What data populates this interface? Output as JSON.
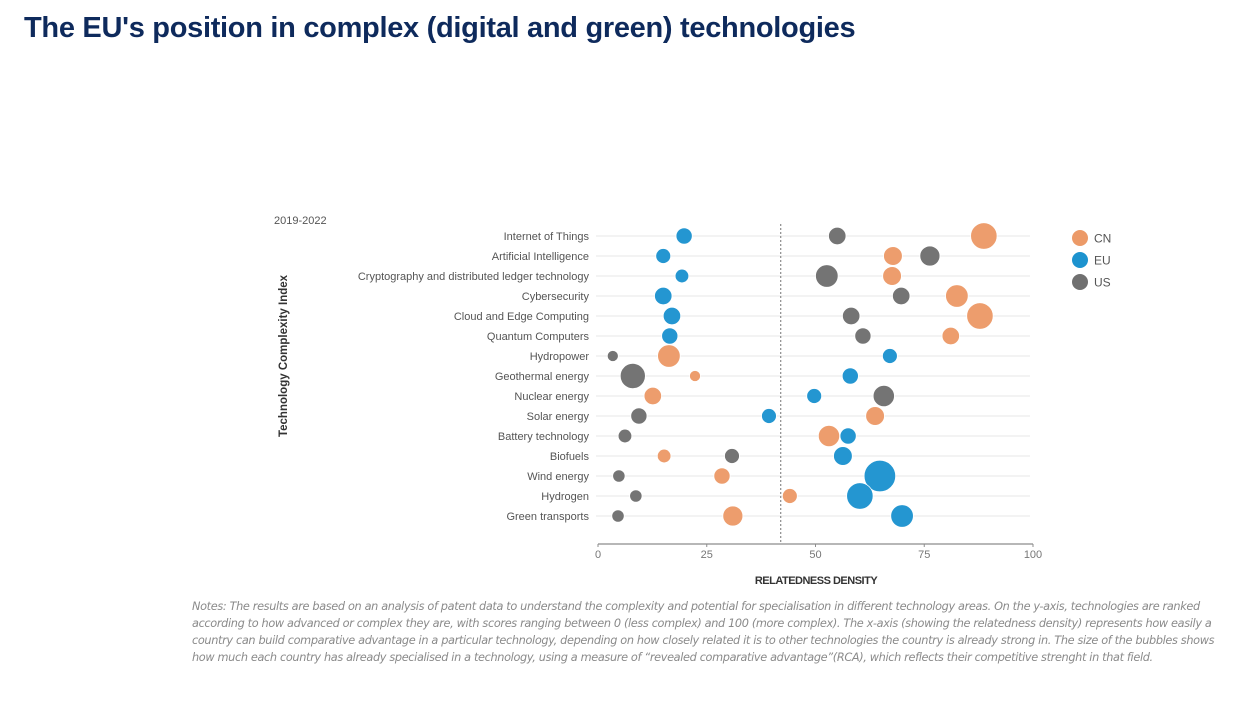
{
  "page": {
    "title": "The EU's position in complex (digital and green) technologies"
  },
  "chart_data": {
    "type": "scatter",
    "subtype": "bubble",
    "period_label": "2019-2022",
    "xlabel": "RELATEDNESS DENSITY",
    "ylabel": "Technology Complexity Index",
    "xlim": [
      0,
      100
    ],
    "xticks": [
      0,
      25,
      50,
      75,
      100
    ],
    "xtick_labels": [
      "0",
      "25",
      "50",
      "75",
      "100"
    ],
    "reference_line_x": 42,
    "grid": "horizontal",
    "legend_position": "right",
    "categories": [
      "Internet of Things",
      "Artificial Intelligence",
      "Cryptography and distributed ledger technology",
      "Cybersecurity",
      "Cloud and Edge Computing",
      "Quantum Computers",
      "Hydropower",
      "Geothermal energy",
      "Nuclear energy",
      "Solar energy",
      "Battery technology",
      "Biofuels",
      "Wind energy",
      "Hydrogen",
      "Green transports"
    ],
    "series": [
      {
        "name": "CN",
        "color": "#ec9a68",
        "x": [
          88.7,
          67.8,
          67.6,
          82.5,
          87.8,
          81.1,
          16.3,
          22.3,
          12.6,
          63.7,
          53.1,
          15.2,
          28.5,
          44.1,
          31.0
        ],
        "size_rca": [
          1.6,
          1.0,
          1.0,
          1.3,
          1.6,
          0.9,
          1.3,
          0.4,
          0.9,
          1.0,
          1.2,
          0.6,
          0.8,
          0.7,
          1.1
        ]
      },
      {
        "name": "EU",
        "color": "#1d93cf",
        "x": [
          19.8,
          15.0,
          19.3,
          15.0,
          17.0,
          16.5,
          67.1,
          58.0,
          49.7,
          39.3,
          57.5,
          56.3,
          64.8,
          60.2,
          69.9
        ],
        "size_rca": [
          0.8,
          0.7,
          0.6,
          0.9,
          0.9,
          0.8,
          0.7,
          0.8,
          0.7,
          0.7,
          0.8,
          1.0,
          2.0,
          1.6,
          1.3
        ]
      },
      {
        "name": "US",
        "color": "#707070",
        "x": [
          55.0,
          76.3,
          52.6,
          69.7,
          58.2,
          60.9,
          3.4,
          8.0,
          65.7,
          9.4,
          6.2,
          30.8,
          4.8,
          8.7,
          4.6
        ],
        "size_rca": [
          0.9,
          1.1,
          1.3,
          0.9,
          0.9,
          0.8,
          0.4,
          1.5,
          1.2,
          0.8,
          0.6,
          0.7,
          0.5,
          0.5,
          0.5
        ]
      }
    ],
    "legend": [
      {
        "label": "CN",
        "color": "#ec9a68"
      },
      {
        "label": "EU",
        "color": "#1d93cf"
      },
      {
        "label": "US",
        "color": "#707070"
      }
    ]
  },
  "notes": "Notes: The results are based on an analysis of patent data to understand the complexity and potential for specialisation in different technology areas. On the y-axis, technologies are ranked according to how advanced or complex they are, with scores ranging between 0 (less complex) and 100 (more complex). The x-axis (showing the relatedness density) represents how easily a country can build comparative advantage in a particular technology, depending on how closely related it is to other technologies the country is already strong in. The size of the bubbles shows how much each country has already specialised in a technology, using a measure of “revealed comparative advantage”(RCA), which reflects their competitive strenght in that field."
}
